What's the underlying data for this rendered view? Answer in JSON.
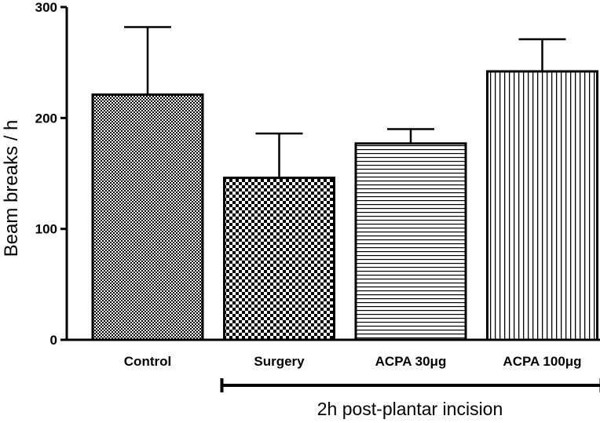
{
  "chart_data": {
    "type": "bar",
    "categories": [
      "Control",
      "Surgery",
      "ACPA 30μg",
      "ACPA 100μg"
    ],
    "values": [
      221,
      146,
      177,
      242
    ],
    "errors": [
      61,
      40,
      13,
      29
    ],
    "patterns": [
      "fine-check",
      "coarse-check",
      "horizontal-lines",
      "vertical-lines"
    ],
    "ylabel": "Beam breaks / h",
    "ylim": [
      0,
      300
    ],
    "yticks": [
      0,
      100,
      200,
      300
    ],
    "grid": false,
    "bracket": {
      "label": "2h post-plantar incision",
      "spans": [
        "Surgery",
        "ACPA 100μg"
      ]
    }
  }
}
